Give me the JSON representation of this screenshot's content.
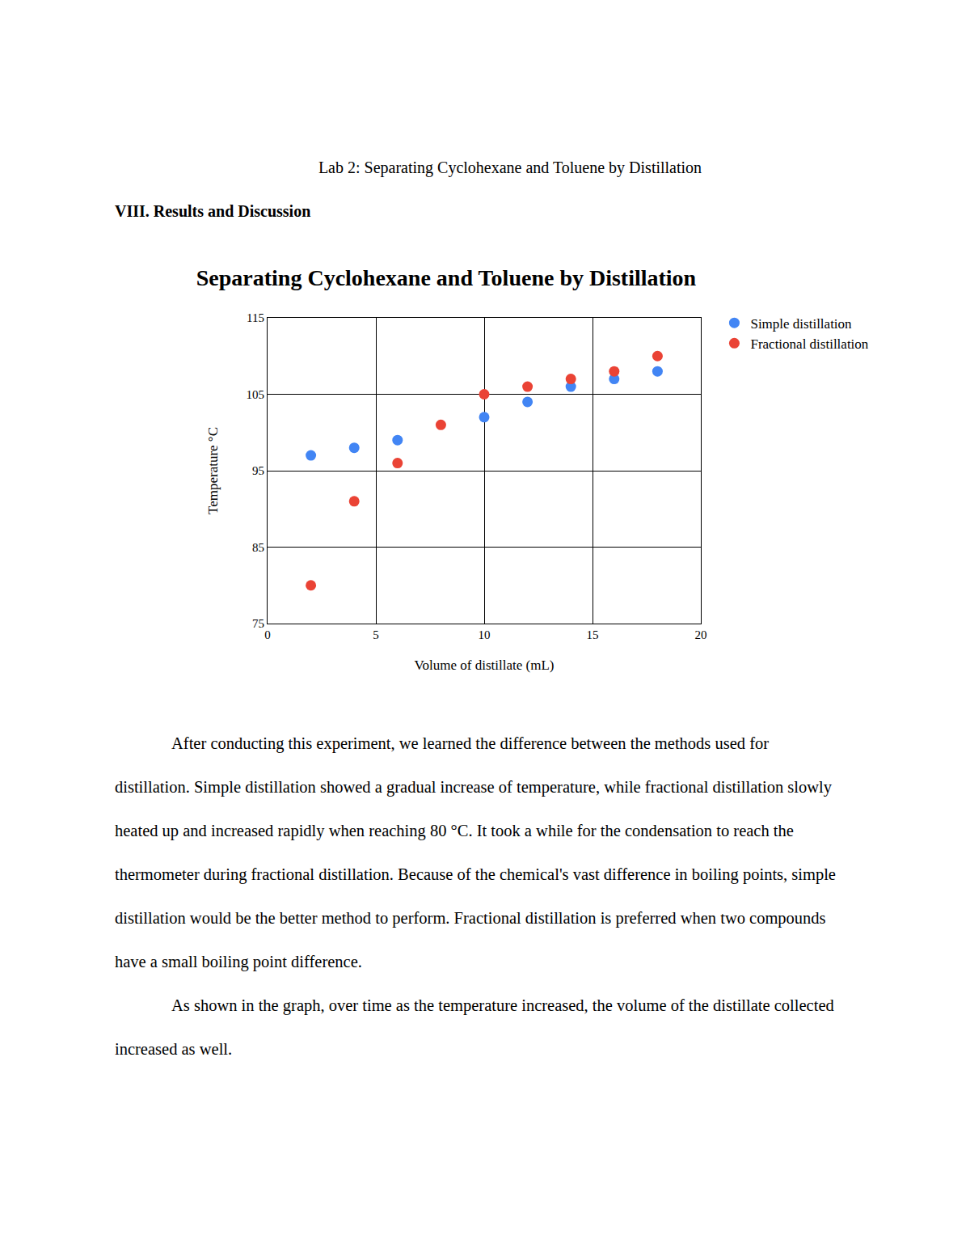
{
  "header": "Lab 2: Separating Cyclohexane and Toluene by Distillation",
  "section_heading": "VIII. Results and Discussion",
  "chart_data": {
    "type": "scatter",
    "title": "Separating Cyclohexane and Toluene by Distillation",
    "x_label": "Volume of distillate (mL)",
    "y_label": "Temperature °C",
    "x": [
      2,
      4,
      6,
      8,
      10,
      12,
      14,
      16,
      18
    ],
    "series": [
      {
        "name": "Simple distillation",
        "color": "#4285f4",
        "values": [
          97,
          98,
          99,
          null,
          102,
          104,
          106,
          107,
          108
        ]
      },
      {
        "name": "Fractional distillation",
        "color": "#ea4335",
        "values": [
          80,
          91,
          96,
          101,
          105,
          106,
          107,
          108,
          110
        ]
      }
    ],
    "xlim": [
      0,
      20
    ],
    "xticks": [
      0,
      5,
      10,
      15,
      20
    ],
    "ylim": [
      75,
      115
    ],
    "yticks": [
      75,
      85,
      95,
      105,
      115
    ],
    "grid": true,
    "legend": "right",
    "marker": "circle"
  },
  "paragraphs": [
    "After conducting this experiment, we learned the difference between the methods used for distillation. Simple distillation showed a gradual increase of temperature, while fractional distillation slowly heated up and increased rapidly when reaching 80 °C. It took a while for the condensation to reach the thermometer during fractional distillation. Because of the chemical's vast difference in boiling points, simple distillation would be the better method to perform. Fractional distillation is preferred when two compounds have a small boiling point difference.",
    "As shown in the graph, over time as the temperature increased, the volume of the distillate collected increased as well."
  ]
}
